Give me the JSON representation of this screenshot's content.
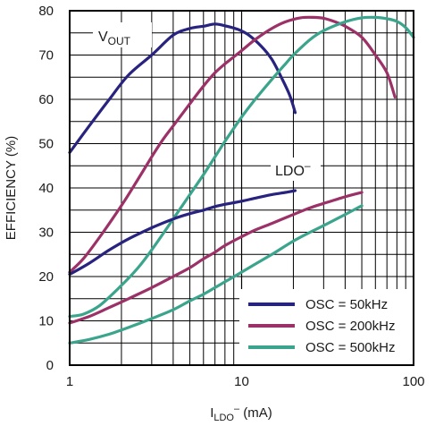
{
  "chart_data": {
    "type": "line",
    "x_scale": "log",
    "xlim": [
      1,
      100
    ],
    "ylim": [
      0,
      80
    ],
    "x_ticks": [
      "1",
      "10",
      "100"
    ],
    "y_ticks": [
      "0",
      "10",
      "20",
      "30",
      "40",
      "50",
      "60",
      "70",
      "80"
    ],
    "ylabel": "EFFICIENCY (%)",
    "xlabel": {
      "main": "I",
      "sub": "LDO",
      "sup": "–",
      "unit": " (mA)"
    },
    "grid": true,
    "legend_position": "bottom-right",
    "colors": {
      "OSC = 50kHz": "#27237f",
      "OSC = 200kHz": "#9c3168",
      "OSC = 500kHz": "#3aa58c"
    },
    "annotations": [
      {
        "label": "V",
        "sub": "OUT"
      },
      {
        "label": "LDO",
        "sup": "–"
      }
    ],
    "series": [
      {
        "name": "OSC = 50kHz",
        "group": "VOUT",
        "points": [
          [
            1,
            48
          ],
          [
            1.3,
            54
          ],
          [
            1.7,
            60
          ],
          [
            2.2,
            65.5
          ],
          [
            3,
            70
          ],
          [
            4,
            74.5
          ],
          [
            5,
            76
          ],
          [
            6,
            76.5
          ],
          [
            7,
            77
          ],
          [
            8,
            76.6
          ],
          [
            9.5,
            75.8
          ],
          [
            11,
            74.5
          ],
          [
            13,
            72
          ],
          [
            15,
            69
          ],
          [
            17,
            65
          ],
          [
            19,
            61
          ],
          [
            20.5,
            57
          ]
        ]
      },
      {
        "name": "OSC = 200kHz",
        "group": "VOUT",
        "points": [
          [
            1,
            21
          ],
          [
            1.2,
            24
          ],
          [
            1.5,
            29
          ],
          [
            2,
            36
          ],
          [
            2.5,
            42
          ],
          [
            3,
            47
          ],
          [
            3.5,
            51
          ],
          [
            4,
            54
          ],
          [
            5,
            59
          ],
          [
            6,
            63
          ],
          [
            7,
            66
          ],
          [
            8,
            68
          ],
          [
            10,
            71
          ],
          [
            12,
            73.5
          ],
          [
            15,
            76
          ],
          [
            18,
            77.5
          ],
          [
            22,
            78.4
          ],
          [
            26,
            78.5
          ],
          [
            30,
            78.3
          ],
          [
            35,
            77.5
          ],
          [
            40,
            76.5
          ],
          [
            50,
            74
          ],
          [
            60,
            70
          ],
          [
            70,
            66
          ],
          [
            78,
            60.5
          ]
        ]
      },
      {
        "name": "OSC = 500kHz",
        "group": "VOUT",
        "points": [
          [
            1,
            11
          ],
          [
            1.2,
            11.5
          ],
          [
            1.5,
            13.5
          ],
          [
            2,
            18
          ],
          [
            2.5,
            22
          ],
          [
            3,
            26
          ],
          [
            4,
            33
          ],
          [
            5,
            38.5
          ],
          [
            6,
            43
          ],
          [
            7,
            47
          ],
          [
            8,
            50.5
          ],
          [
            10,
            56
          ],
          [
            12,
            60
          ],
          [
            15,
            64.5
          ],
          [
            18,
            68
          ],
          [
            20,
            70
          ],
          [
            25,
            73.5
          ],
          [
            30,
            75.5
          ],
          [
            40,
            77.5
          ],
          [
            50,
            78.4
          ],
          [
            60,
            78.5
          ],
          [
            70,
            78.2
          ],
          [
            80,
            77.6
          ],
          [
            90,
            76.2
          ],
          [
            100,
            74
          ]
        ]
      },
      {
        "name": "OSC = 50kHz",
        "group": "LDO",
        "points": [
          [
            1,
            20.5
          ],
          [
            1.3,
            23
          ],
          [
            1.7,
            26
          ],
          [
            2.2,
            28.5
          ],
          [
            3,
            31
          ],
          [
            4,
            33
          ],
          [
            5,
            34.2
          ],
          [
            6,
            35
          ],
          [
            7,
            35.8
          ],
          [
            8,
            36.3
          ],
          [
            10,
            37
          ],
          [
            12,
            37.7
          ],
          [
            15,
            38.5
          ],
          [
            18,
            39
          ],
          [
            20.5,
            39.4
          ]
        ]
      },
      {
        "name": "OSC = 200kHz",
        "group": "LDO",
        "points": [
          [
            1,
            9.5
          ],
          [
            1.3,
            11
          ],
          [
            1.7,
            13
          ],
          [
            2.2,
            15
          ],
          [
            3,
            17.5
          ],
          [
            4,
            20
          ],
          [
            5,
            22
          ],
          [
            6,
            24
          ],
          [
            7,
            25.5
          ],
          [
            8,
            27
          ],
          [
            10,
            29
          ],
          [
            12,
            30.5
          ],
          [
            15,
            32
          ],
          [
            20,
            34
          ],
          [
            25,
            35.5
          ],
          [
            30,
            36.5
          ],
          [
            40,
            38
          ],
          [
            50,
            39
          ]
        ]
      },
      {
        "name": "OSC = 500kHz",
        "group": "LDO",
        "points": [
          [
            1,
            5
          ],
          [
            1.3,
            5.8
          ],
          [
            1.7,
            7
          ],
          [
            2.2,
            8.5
          ],
          [
            3,
            10.5
          ],
          [
            4,
            12.5
          ],
          [
            5,
            14.5
          ],
          [
            6,
            16
          ],
          [
            7,
            17.5
          ],
          [
            8,
            18.8
          ],
          [
            10,
            21
          ],
          [
            12,
            22.8
          ],
          [
            15,
            25
          ],
          [
            20,
            28
          ],
          [
            25,
            30
          ],
          [
            30,
            31.5
          ],
          [
            40,
            34
          ],
          [
            50,
            36
          ]
        ]
      }
    ]
  }
}
